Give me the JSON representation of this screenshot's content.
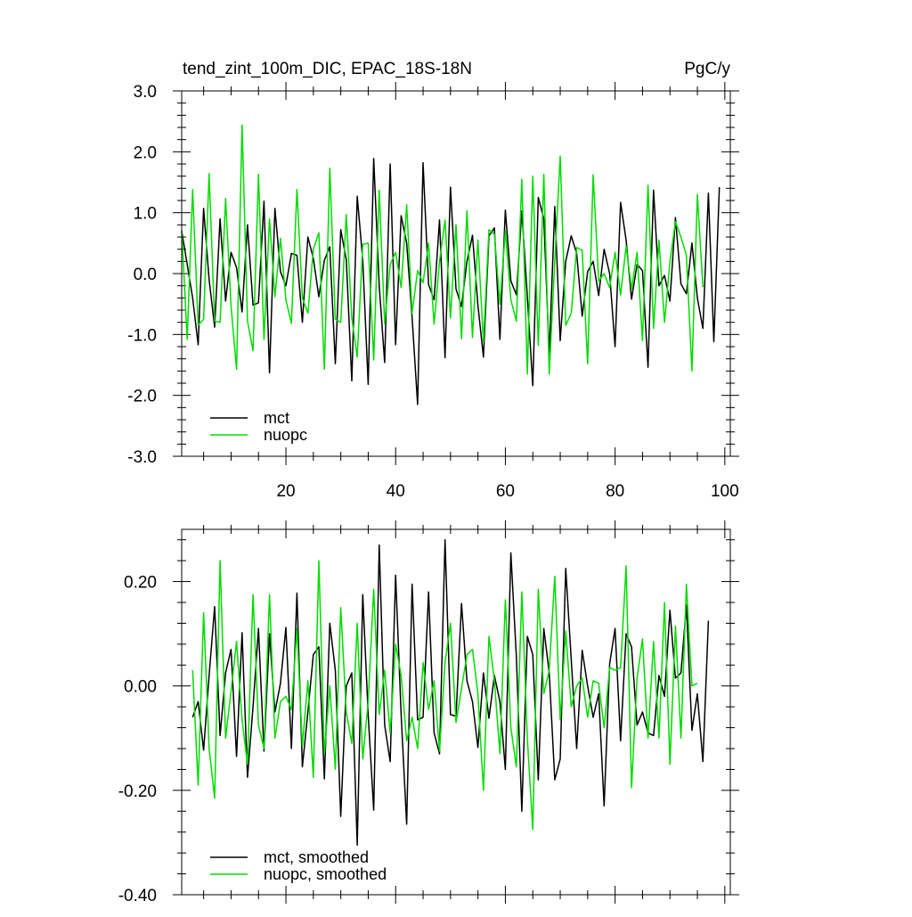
{
  "chart_data": [
    {
      "type": "line",
      "title": "tend_zint_100m_DIC, EPAC_18S-18N",
      "units": "PgC/y",
      "xlabel": "",
      "ylabel": "",
      "xlim": [
        1,
        101
      ],
      "ylim": [
        -3.0,
        3.0
      ],
      "x_ticks": [
        20,
        40,
        60,
        80,
        100
      ],
      "y_ticks": [
        "-3.0",
        "-2.0",
        "-1.0",
        "0.0",
        "1.0",
        "2.0",
        "3.0"
      ],
      "y_tick_values": [
        -3,
        -2,
        -1,
        0,
        1,
        2,
        3
      ],
      "legend_position": "bottom-left",
      "colors": {
        "mct": "#000000",
        "nuopc": "#00dd00"
      },
      "series": [
        {
          "name": "mct",
          "x_start": 1,
          "values": [
            0.7,
            0.15,
            -0.4,
            -1.17,
            1.07,
            -0.1,
            -0.88,
            0.9,
            -0.45,
            0.35,
            0.1,
            -0.63,
            0.8,
            -0.52,
            -0.48,
            1.19,
            -1.63,
            1.07,
            0.03,
            -0.2,
            0.33,
            0.3,
            -0.8,
            0.6,
            0.25,
            -0.38,
            0.22,
            0.44,
            -1.48,
            0.72,
            0.23,
            -1.76,
            1.27,
            0.22,
            -1.82,
            1.89,
            -0.2,
            -1.46,
            1.8,
            -1.17,
            0.95,
            0.5,
            -0.72,
            -2.15,
            1.82,
            -0.18,
            -0.43,
            0.88,
            -1.38,
            1.42,
            -0.25,
            -0.54,
            0.2,
            0.63,
            -0.52,
            -1.37,
            0.62,
            0.75,
            -1.08,
            1.04,
            -0.12,
            -0.35,
            1.03,
            -0.38,
            -1.84,
            1.25,
            0.9,
            -1.33,
            1.1,
            -1.1,
            0.2,
            0.62,
            0.33,
            -0.7,
            0.03,
            0.2,
            -0.36,
            0.4,
            0.0,
            -1.2,
            1.17,
            0.55,
            -0.42,
            0.15,
            0.05,
            -1.54,
            1.37,
            -0.2,
            -0.03,
            -0.45,
            0.92,
            -0.17,
            -0.33,
            0.5,
            -0.4,
            -0.9,
            1.32,
            -1.12,
            1.42
          ]
        },
        {
          "name": "nuopc",
          "x_start": 1,
          "values": [
            0.7,
            -1.08,
            1.38,
            -0.85,
            -0.75,
            1.64,
            -0.78,
            -0.8,
            1.23,
            -0.53,
            -1.57,
            2.44,
            -0.78,
            -1.27,
            1.63,
            -1.08,
            0.9,
            -0.38,
            0.58,
            -0.43,
            -0.82,
            1.38,
            -0.4,
            -0.65,
            0.4,
            0.67,
            -1.57,
            1.73,
            -0.75,
            -0.8,
            0.97,
            -0.73,
            -1.37,
            0.48,
            0.5,
            -1.42,
            1.37,
            -0.82,
            0.15,
            0.35,
            -0.23,
            1.13,
            -0.65,
            0.05,
            -0.15,
            0.5,
            -0.83,
            0.2,
            0.88,
            -0.73,
            0.8,
            -1.07,
            1.03,
            -1.05,
            0.55,
            -1.12,
            0.72,
            0.65,
            -0.5,
            0.7,
            -0.43,
            -0.78,
            1.55,
            -1.65,
            1.6,
            -1.18,
            1.63,
            -1.65,
            0.2,
            1.93,
            -0.85,
            -0.65,
            0.43,
            0.38,
            -1.48,
            1.62,
            -0.12,
            0.0,
            -0.23,
            0.35,
            -0.35,
            0.45,
            -0.25,
            0.35,
            -1.1,
            1.45,
            -0.9,
            0.55,
            -0.8,
            0.2,
            0.85,
            0.6,
            0.3,
            -1.6,
            1.3,
            -0.22
          ]
        }
      ]
    },
    {
      "type": "line",
      "title": "",
      "xlabel": "",
      "ylabel": "",
      "xlim": [
        1,
        101
      ],
      "ylim": [
        -0.4,
        0.3
      ],
      "y_ticks": [
        "-0.40",
        "-0.20",
        "0.00",
        "0.20"
      ],
      "y_tick_values": [
        -0.4,
        -0.2,
        0,
        0.2
      ],
      "legend_position": "bottom-left",
      "colors": {
        "mct, smoothed": "#000000",
        "nuopc, smoothed": "#00dd00"
      },
      "series": [
        {
          "name": "mct, smoothed",
          "x_start": 3,
          "values": [
            -0.06,
            -0.03,
            -0.123,
            0.02,
            0.152,
            -0.095,
            0.025,
            0.07,
            -0.135,
            0.102,
            -0.175,
            -0.04,
            0.11,
            -0.125,
            0.1,
            -0.05,
            0.005,
            0.112,
            -0.12,
            0.178,
            -0.155,
            -0.05,
            0.06,
            0.075,
            -0.178,
            0.12,
            0.03,
            -0.25,
            0.0,
            0.025,
            -0.305,
            0.175,
            -0.055,
            -0.238,
            0.27,
            -0.075,
            -0.145,
            0.212,
            -0.055,
            -0.265,
            0.195,
            -0.065,
            -0.06,
            0.18,
            -0.09,
            -0.13,
            0.28,
            -0.055,
            -0.058,
            0.158,
            0.01,
            -0.03,
            -0.118,
            0.025,
            -0.062,
            0.02,
            -0.03,
            -0.16,
            0.255,
            0.055,
            -0.24,
            0.095,
            0.06,
            -0.18,
            0.11,
            0.025,
            -0.18,
            -0.14,
            0.225,
            0.05,
            -0.12,
            0.068,
            0.0,
            -0.06,
            -0.015,
            -0.23,
            0.042,
            0.11,
            -0.105,
            0.1,
            0.075,
            -0.075,
            -0.05,
            -0.09,
            -0.095,
            0.02,
            -0.02,
            0.145,
            0.015,
            0.025,
            0.155,
            -0.085,
            -0.015,
            -0.145,
            0.125
          ]
        },
        {
          "name": "nuopc, smoothed",
          "x_start": 3,
          "values": [
            0.03,
            -0.19,
            0.14,
            -0.12,
            -0.215,
            0.24,
            -0.1,
            -0.01,
            0.085,
            -0.065,
            -0.15,
            0.175,
            -0.075,
            -0.12,
            0.175,
            -0.1,
            -0.03,
            -0.02,
            -0.045,
            0.11,
            -0.115,
            0.01,
            -0.175,
            0.24,
            -0.13,
            0.0,
            -0.16,
            0.15,
            -0.05,
            -0.11,
            0.12,
            -0.14,
            -0.03,
            0.185,
            -0.055,
            0.03,
            -0.09,
            0.08,
            0.02,
            -0.105,
            -0.06,
            -0.12,
            0.045,
            -0.045,
            0.01,
            -0.125,
            0.045,
            0.12,
            -0.07,
            -0.005,
            0.06,
            0.07,
            -0.015,
            -0.2,
            0.095,
            0.01,
            -0.13,
            0.165,
            -0.08,
            -0.155,
            0.18,
            -0.1,
            -0.275,
            0.185,
            -0.015,
            0.03,
            0.21,
            -0.065,
            0.105,
            -0.04,
            0.0,
            0.015,
            -0.06,
            0.01,
            0.005,
            -0.08,
            0.035,
            0.03,
            0.035,
            0.23,
            -0.195,
            0.015,
            0.09,
            -0.1,
            0.085,
            -0.1,
            0.16,
            -0.15,
            0.115,
            -0.1,
            0.195,
            0.0,
            0.005
          ]
        }
      ]
    }
  ]
}
